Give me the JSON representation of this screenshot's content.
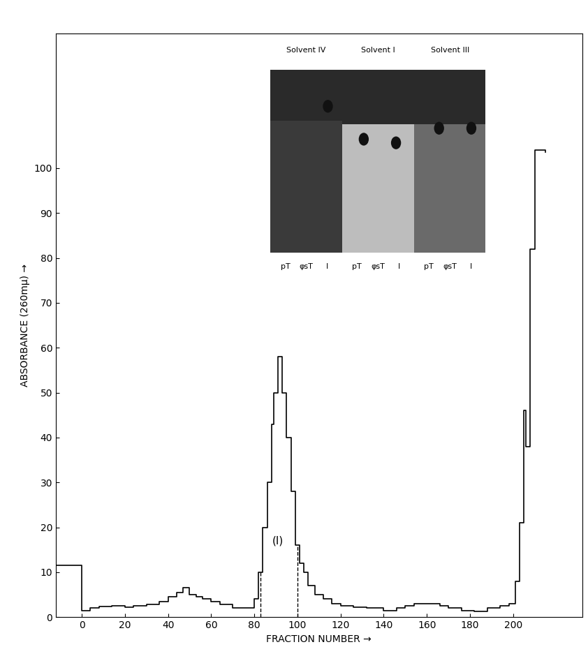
{
  "chart_data": {
    "type": "step",
    "x_label": "FRACTION NUMBER →",
    "y_label": "ABSORBANCE (260mμ) →",
    "x": [
      -12,
      0,
      4,
      8,
      14,
      20,
      24,
      30,
      36,
      40,
      44,
      47,
      50,
      53,
      56,
      60,
      64,
      70,
      76,
      80,
      82,
      84,
      86,
      88,
      89,
      91,
      93,
      95,
      97,
      99,
      101,
      103,
      105,
      108,
      112,
      116,
      120,
      126,
      132,
      140,
      146,
      150,
      154,
      158,
      162,
      166,
      170,
      176,
      182,
      188,
      194,
      198,
      201,
      203,
      205,
      206,
      208,
      210,
      212,
      215
    ],
    "values": [
      11.5,
      1.5,
      2,
      2.3,
      2.5,
      2.2,
      2.5,
      2.8,
      3.5,
      4.5,
      5.5,
      6.5,
      5,
      4.5,
      4,
      3.5,
      2.8,
      2,
      2,
      4,
      10,
      20,
      30,
      43,
      50,
      58,
      50,
      40,
      28,
      16,
      12,
      10,
      7,
      5,
      4,
      3,
      2.5,
      2.2,
      2,
      1.5,
      2,
      2.5,
      3,
      3,
      3,
      2.5,
      2,
      1.5,
      1.2,
      2,
      2.5,
      3,
      8,
      21,
      46,
      38,
      82,
      104,
      104,
      103.5
    ],
    "color": "#000000",
    "xlim": [
      -12,
      232
    ],
    "ylim": [
      0,
      130
    ],
    "xticks": [
      0,
      20,
      40,
      60,
      80,
      100,
      120,
      140,
      160,
      180,
      200
    ],
    "yticks": [
      0,
      10,
      20,
      30,
      40,
      50,
      60,
      70,
      80,
      90,
      100
    ],
    "cut_lines": [
      83,
      100
    ],
    "annotations": [
      {
        "text": "(I)",
        "x": 91,
        "y": 17
      }
    ],
    "inset": {
      "solvents": [
        "Solvent IV",
        "Solvent I",
        "Solvent III"
      ],
      "lane_labels": [
        "pT",
        "φsT",
        "I"
      ]
    }
  }
}
